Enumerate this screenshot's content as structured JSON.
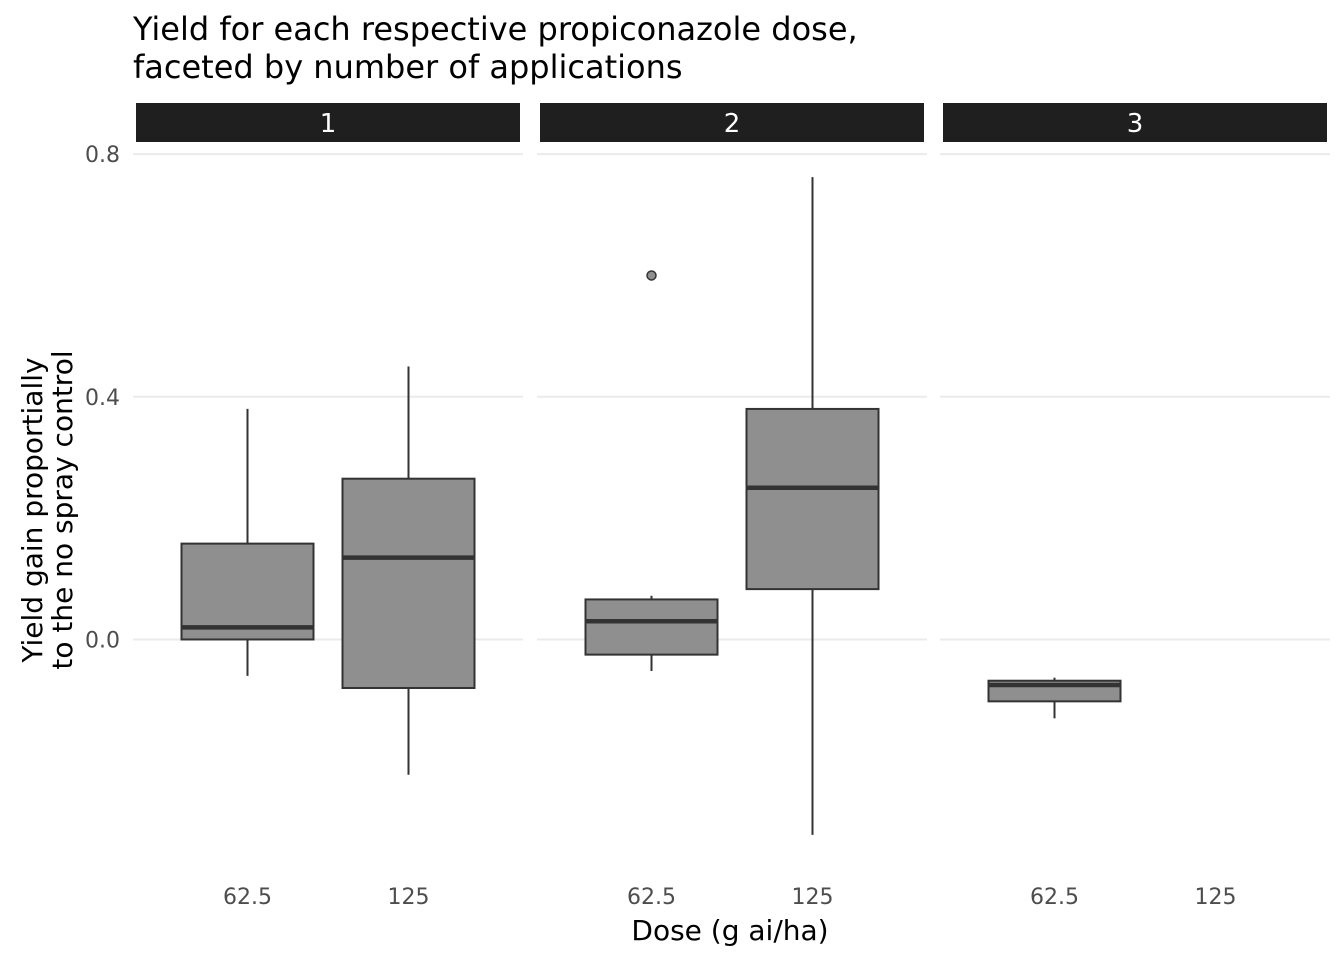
{
  "chart_data": {
    "type": "box",
    "title_lines": [
      "Yield for each respective propiconazole dose,",
      "faceted by number of applications"
    ],
    "xlabel": "Dose (g ai/ha)",
    "ylabel_lines": [
      "Yield gain proportially",
      "to the no spray control"
    ],
    "ylim": [
      -0.38,
      0.82
    ],
    "y_ticks": [
      0.0,
      0.4,
      0.8
    ],
    "y_tick_labels": [
      "0.0",
      "0.4",
      "0.8"
    ],
    "categories": [
      "62.5",
      "125"
    ],
    "grid": true,
    "facets": [
      {
        "label": "1",
        "boxes": [
          {
            "category": "62.5",
            "min": -0.06,
            "q1": 0.0,
            "median": 0.02,
            "q3": 0.158,
            "max": 0.38,
            "outliers": []
          },
          {
            "category": "125",
            "min": -0.223,
            "q1": -0.08,
            "median": 0.135,
            "q3": 0.265,
            "max": 0.45,
            "outliers": []
          }
        ]
      },
      {
        "label": "2",
        "boxes": [
          {
            "category": "62.5",
            "min": -0.052,
            "q1": -0.025,
            "median": 0.03,
            "q3": 0.066,
            "max": 0.072,
            "outliers": [
              0.6
            ]
          },
          {
            "category": "125",
            "min": -0.322,
            "q1": 0.083,
            "median": 0.25,
            "q3": 0.38,
            "max": 0.762,
            "outliers": []
          }
        ]
      },
      {
        "label": "3",
        "boxes": [
          {
            "category": "62.5",
            "min": -0.13,
            "q1": -0.102,
            "median": -0.075,
            "q3": -0.068,
            "max": -0.063,
            "outliers": []
          }
        ]
      }
    ]
  }
}
